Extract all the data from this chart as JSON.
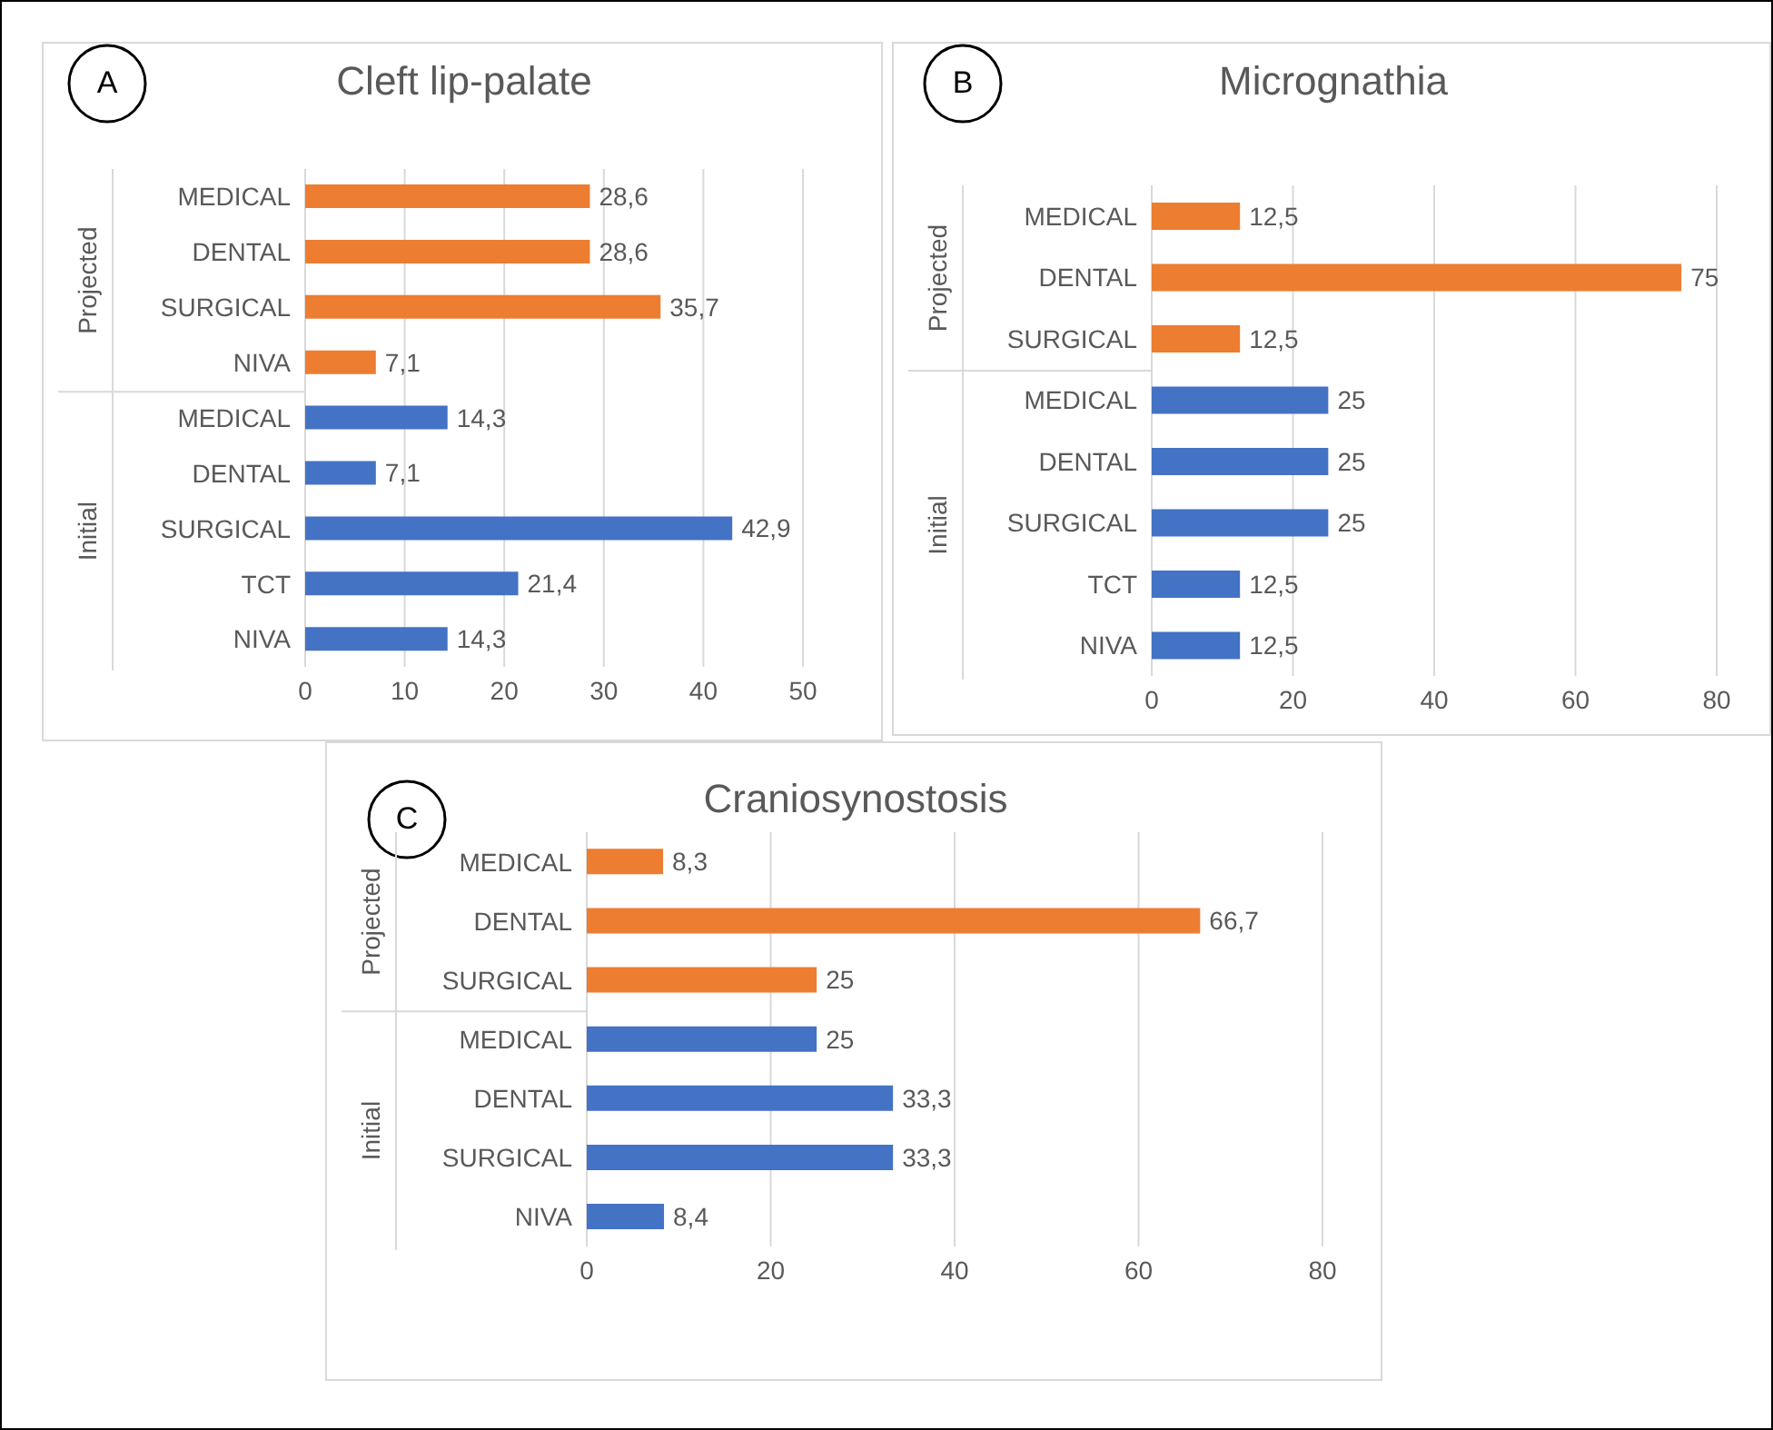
{
  "chart_data": [
    {
      "type": "bar",
      "orientation": "horizontal",
      "title": "Cleft lip-palate",
      "annotations": [
        "A",
        "Projected",
        "Initial"
      ],
      "categories": [
        "MEDICAL",
        "DENTAL",
        "SURGICAL",
        "NIVA",
        "MEDICAL",
        "DENTAL",
        "SURGICAL",
        "TCT",
        "NIVA"
      ],
      "xlim": [
        0,
        50
      ],
      "xticks": [
        0,
        10,
        20,
        30,
        40,
        50
      ],
      "grid": "x",
      "values": [
        28.6,
        28.6,
        35.7,
        7.1,
        14.3,
        7.1,
        42.9,
        21.4,
        14.3
      ],
      "value_labels": [
        "28,6",
        "28,6",
        "35,7",
        "7,1",
        "14,3",
        "7,1",
        "42,9",
        "21,4",
        "14,3"
      ],
      "colors": [
        "#ed7d31",
        "#ed7d31",
        "#ed7d31",
        "#ed7d31",
        "#4472c4",
        "#4472c4",
        "#4472c4",
        "#4472c4",
        "#4472c4"
      ]
    },
    {
      "type": "bar",
      "orientation": "horizontal",
      "title": "Micrognathia",
      "annotations": [
        "B",
        "Projected",
        "Initial"
      ],
      "categories": [
        "MEDICAL",
        "DENTAL",
        "SURGICAL",
        "MEDICAL",
        "DENTAL",
        "SURGICAL",
        "TCT",
        "NIVA"
      ],
      "xlim": [
        0,
        80
      ],
      "xticks": [
        0,
        20,
        40,
        60,
        80
      ],
      "grid": "x",
      "values": [
        12.5,
        75,
        12.5,
        25,
        25,
        25,
        12.5,
        12.5
      ],
      "value_labels": [
        "12,5",
        "75",
        "12,5",
        "25",
        "25",
        "25",
        "12,5",
        "12,5"
      ],
      "colors": [
        "#ed7d31",
        "#ed7d31",
        "#ed7d31",
        "#4472c4",
        "#4472c4",
        "#4472c4",
        "#4472c4",
        "#4472c4"
      ]
    },
    {
      "type": "bar",
      "orientation": "horizontal",
      "title": "Craniosynostosis",
      "annotations": [
        "C",
        "Projected",
        "Initial"
      ],
      "categories": [
        "MEDICAL",
        "DENTAL",
        "SURGICAL",
        "MEDICAL",
        "DENTAL",
        "SURGICAL",
        "NIVA"
      ],
      "xlim": [
        0,
        80
      ],
      "xticks": [
        0,
        20,
        40,
        60,
        80
      ],
      "grid": "x",
      "values": [
        8.3,
        66.7,
        25,
        25,
        33.3,
        33.3,
        8.4
      ],
      "value_labels": [
        "8,3",
        "66,7",
        "25",
        "25",
        "33,3",
        "33,3",
        "8,4"
      ],
      "colors": [
        "#ed7d31",
        "#ed7d31",
        "#ed7d31",
        "#4472c4",
        "#4472c4",
        "#4472c4",
        "#4472c4"
      ]
    }
  ]
}
